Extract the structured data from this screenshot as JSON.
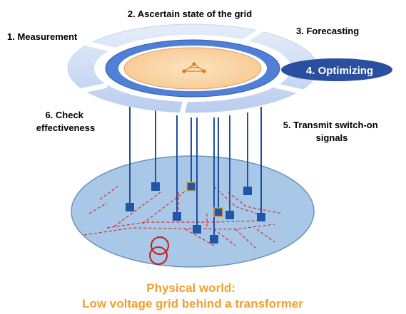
{
  "steps": {
    "measurement": "1. Measurement",
    "ascertain": "2. Ascertain state of the grid",
    "forecasting": "3. Forecasting",
    "optimizing": "4. Optimizing",
    "transmit": [
      "5. Transmit switch-on",
      "signals"
    ],
    "check": [
      "6. Check",
      "effectiveness"
    ]
  },
  "caption": [
    "Physical world:",
    "Low voltage grid behind a transformer"
  ]
}
